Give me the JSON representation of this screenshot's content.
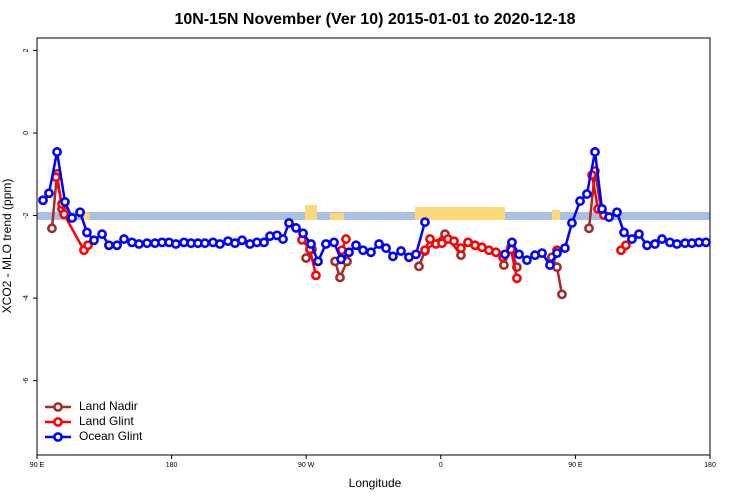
{
  "chart_data": {
    "type": "line",
    "title": "10N-15N November (Ver 10)   2015-01-01 to 2020-12-18",
    "x_label": "Longitude",
    "y_label": "XCO2 - MLO trend (ppm)",
    "xlim": [
      90,
      540
    ],
    "ylim": [
      -7.8,
      2.3
    ],
    "xticks": [
      {
        "value": 90,
        "label": "90 E"
      },
      180,
      {
        "value": 270,
        "label": "90 W"
      },
      {
        "value": 360,
        "label": "0"
      },
      {
        "value": 450,
        "label": "90 E"
      },
      {
        "value": 540,
        "label": "180"
      }
    ],
    "yticks": [
      2,
      0,
      -2,
      -4,
      -6
    ],
    "legend": "bottom-left",
    "series": [
      {
        "name": "Land Nadir",
        "color": "#a52a2a",
        "x": [
          100,
          103.4,
          106.7,
          null,
          269.9,
          273.9,
          null,
          289.3,
          292.6,
          297.3,
          null,
          345.4,
          349.4,
          362.8,
          373.5,
          null,
          402.2,
          406.9,
          410.9,
          null,
          434.3,
          437.7,
          441,
          null,
          459.1,
          463.1,
          467.1
        ],
        "values": [
          -2.31,
          -0.99,
          -1.84,
          null,
          -3.03,
          -2.82,
          null,
          -3.11,
          -3.5,
          -3.11,
          null,
          -3.23,
          -2.86,
          -2.45,
          -2.96,
          null,
          -3.2,
          -2.77,
          -3.25,
          null,
          -3.01,
          -3.25,
          -3.91,
          null,
          -2.31,
          -0.92,
          -1.84
        ]
      },
      {
        "name": "Land Glint",
        "color": "#ff0000",
        "x": [
          102.7,
          106.7,
          108.1,
          121.4,
          124.1,
          null,
          267.2,
          272.5,
          276.5,
          null,
          293.9,
          296.6,
          null,
          349.4,
          352.8,
          356.8,
          360.8,
          364.8,
          368.8,
          373.5,
          378.2,
          382.9,
          387.5,
          392.2,
          396.9,
          401.6,
          406.9,
          410.9,
          null,
          437.7,
          null,
          461.1,
          465.1,
          469.1,
          null,
          480.5,
          483.8
        ],
        "values": [
          -1.07,
          -1.72,
          -1.97,
          -2.84,
          -2.72,
          null,
          -2.59,
          -2.82,
          -3.45,
          null,
          -2.84,
          -2.57,
          null,
          -2.84,
          -2.57,
          -2.69,
          -2.67,
          -2.57,
          -2.62,
          -2.79,
          -2.65,
          -2.72,
          -2.77,
          -2.84,
          -2.89,
          -3.01,
          -2.82,
          -3.52,
          null,
          -2.84,
          null,
          -1.02,
          -1.84,
          -1.99,
          null,
          -2.84,
          -2.72
        ]
      },
      {
        "name": "Ocean Glint",
        "color": "#0000ff",
        "x": [
          94,
          98,
          103.4,
          108.7,
          113.4,
          118.8,
          123.4,
          128.1,
          133.5,
          138.1,
          143.5,
          148.2,
          153.5,
          158.2,
          163.6,
          168.9,
          173.6,
          178.3,
          182.9,
          188.3,
          193,
          197.6,
          202.3,
          207.7,
          212.3,
          217.7,
          222.4,
          227.1,
          232.4,
          237.1,
          241.8,
          245.8,
          250.5,
          254.5,
          258.5,
          263.2,
          267.9,
          273.2,
          277.9,
          283.2,
          288.6,
          293.3,
          298.6,
          303.3,
          308,
          313.3,
          318.7,
          323.4,
          328,
          333.4,
          338.7,
          343.4,
          349.4,
          null,
          402.9,
          407.6,
          412.3,
          417.6,
          423,
          427.7,
          433,
          437.7,
          443,
          447.7,
          453.1,
          457.7,
          463.1,
          467.8,
          472.5,
          477.8,
          482.5,
          487.8,
          492.5,
          497.9,
          503.2,
          507.9,
          513.2,
          517.9,
          523.3,
          527.9,
          532.6,
          537.3
        ],
        "values": [
          -1.63,
          -1.46,
          -0.46,
          -1.67,
          -2.06,
          -1.92,
          -2.41,
          -2.6,
          -2.45,
          -2.72,
          -2.72,
          -2.57,
          -2.65,
          -2.69,
          -2.67,
          -2.67,
          -2.65,
          -2.65,
          -2.69,
          -2.65,
          -2.67,
          -2.67,
          -2.67,
          -2.65,
          -2.69,
          -2.62,
          -2.67,
          -2.6,
          -2.69,
          -2.65,
          -2.65,
          -2.5,
          -2.48,
          -2.57,
          -2.18,
          -2.3,
          -2.43,
          -2.69,
          -3.11,
          -2.69,
          -2.65,
          -3.06,
          -2.89,
          -2.72,
          -2.84,
          -2.89,
          -2.69,
          -2.79,
          -2.99,
          -2.86,
          -3.01,
          -2.94,
          -2.16,
          null,
          -2.94,
          -2.65,
          -2.94,
          -3.08,
          -2.96,
          -2.91,
          -3.2,
          -2.91,
          -2.79,
          -2.18,
          -1.65,
          -1.48,
          -0.46,
          -1.84,
          -2.04,
          -1.92,
          -2.41,
          -2.57,
          -2.45,
          -2.72,
          -2.69,
          -2.57,
          -2.65,
          -2.69,
          -2.67,
          -2.67,
          -2.65,
          -2.65
        ]
      }
    ]
  }
}
